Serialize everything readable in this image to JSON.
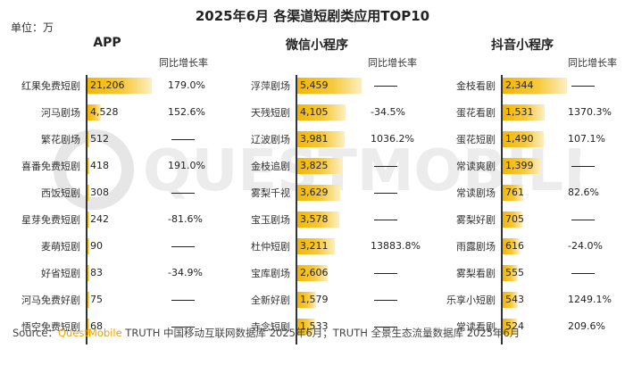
{
  "title": "2025年6月 各渠道短剧类应用TOP10",
  "unit_label": "单位：万",
  "growth_header": "同比增长率",
  "watermark": "QUESTMOBILE",
  "source": {
    "prefix": "Source：",
    "brand": "QuestMobile",
    "rest": " TRUTH 中国移动互联网数据库 2025年6月；TRUTH 全景生态流量数据库 2025年6月"
  },
  "colors": {
    "bar": "#f2b705",
    "text": "#222222"
  },
  "chart_data": [
    {
      "type": "bar",
      "title": "APP",
      "orientation": "horizontal",
      "categories": [
        "红果免费短剧",
        "河马剧场",
        "繁花剧场",
        "喜番免费短剧",
        "西饭短剧",
        "星芽免费短剧",
        "麦萌短剧",
        "好省短剧",
        "河马免费好剧",
        "悟空免费短剧"
      ],
      "values": [
        21206,
        4528,
        512,
        418,
        308,
        242,
        90,
        83,
        75,
        68
      ],
      "value_labels": [
        "21,206",
        "4,528",
        "512",
        "418",
        "308",
        "242",
        "90",
        "83",
        "75",
        "68"
      ],
      "growth": [
        "179.0%",
        "152.6%",
        "",
        "191.0%",
        "",
        "-81.6%",
        "",
        "-34.9%",
        "",
        ""
      ]
    },
    {
      "type": "bar",
      "title": "微信小程序",
      "orientation": "horizontal",
      "categories": [
        "浮萍剧场",
        "天残短剧",
        "辽波剧场",
        "金枝追剧",
        "雾梨千视",
        "宝玉剧场",
        "杜仲短剧",
        "宝库剧场",
        "全新好剧",
        "寺念短剧"
      ],
      "values": [
        5459,
        4105,
        3981,
        3825,
        3629,
        3578,
        3211,
        2606,
        1579,
        1533
      ],
      "value_labels": [
        "5,459",
        "4,105",
        "3,981",
        "3,825",
        "3,629",
        "3,578",
        "3,211",
        "2,606",
        "1,579",
        "1,533"
      ],
      "growth": [
        "",
        "-34.5%",
        "1036.2%",
        "",
        "",
        "",
        "13883.8%",
        "",
        "",
        ""
      ]
    },
    {
      "type": "bar",
      "title": "抖音小程序",
      "orientation": "horizontal",
      "categories": [
        "金枝看剧",
        "蛋花看剧",
        "蛋花短剧",
        "常读爽剧",
        "常读剧场",
        "雾梨好剧",
        "雨露剧场",
        "雾梨看剧",
        "乐享小短剧",
        "常读看剧"
      ],
      "values": [
        2344,
        1531,
        1490,
        1399,
        761,
        705,
        616,
        555,
        543,
        524
      ],
      "value_labels": [
        "2,344",
        "1,531",
        "1,490",
        "1,399",
        "761",
        "705",
        "616",
        "555",
        "543",
        "524"
      ],
      "growth": [
        "",
        "1370.3%",
        "107.1%",
        "",
        "82.6%",
        "",
        "-24.0%",
        "",
        "1249.1%",
        "209.6%"
      ]
    }
  ]
}
